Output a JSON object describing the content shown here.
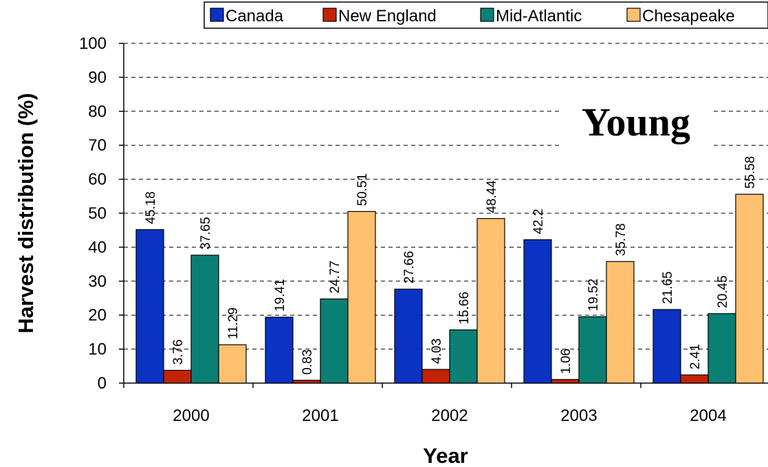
{
  "chart_data": {
    "type": "bar",
    "categories": [
      "2000",
      "2001",
      "2002",
      "2003",
      "2004"
    ],
    "series": [
      {
        "name": "Canada",
        "color": "#0a32c3",
        "values": [
          45.18,
          19.41,
          27.66,
          42.2,
          21.65
        ],
        "labels": [
          "45.18",
          "19.41",
          "27.66",
          "42.2",
          "21.65"
        ]
      },
      {
        "name": "New England",
        "color": "#c32305",
        "values": [
          3.76,
          0.83,
          4.03,
          1.06,
          2.41
        ],
        "labels": [
          "3.76",
          "0.83",
          "4.03",
          "1.06",
          "2.41"
        ]
      },
      {
        "name": "Mid-Atlantic",
        "color": "#0a8075",
        "values": [
          37.65,
          24.77,
          15.66,
          19.52,
          20.45
        ],
        "labels": [
          "37.65",
          "24.77",
          "15.66",
          "19.52",
          "20.45"
        ]
      },
      {
        "name": "Chesapeake",
        "color": "#fdc06e",
        "values": [
          11.29,
          50.51,
          48.44,
          35.78,
          55.58
        ],
        "labels": [
          "11.29",
          "50.51",
          "48.44",
          "35.78",
          "55.58"
        ]
      }
    ],
    "yticks": [
      "0",
      "10",
      "20",
      "30",
      "40",
      "50",
      "60",
      "70",
      "80",
      "90",
      "100"
    ],
    "ylim": [
      0,
      100
    ],
    "xlabel": "Year",
    "ylabel": "Harvest distribution (%)",
    "annotation": "Young",
    "grid": true,
    "legend": "top"
  }
}
